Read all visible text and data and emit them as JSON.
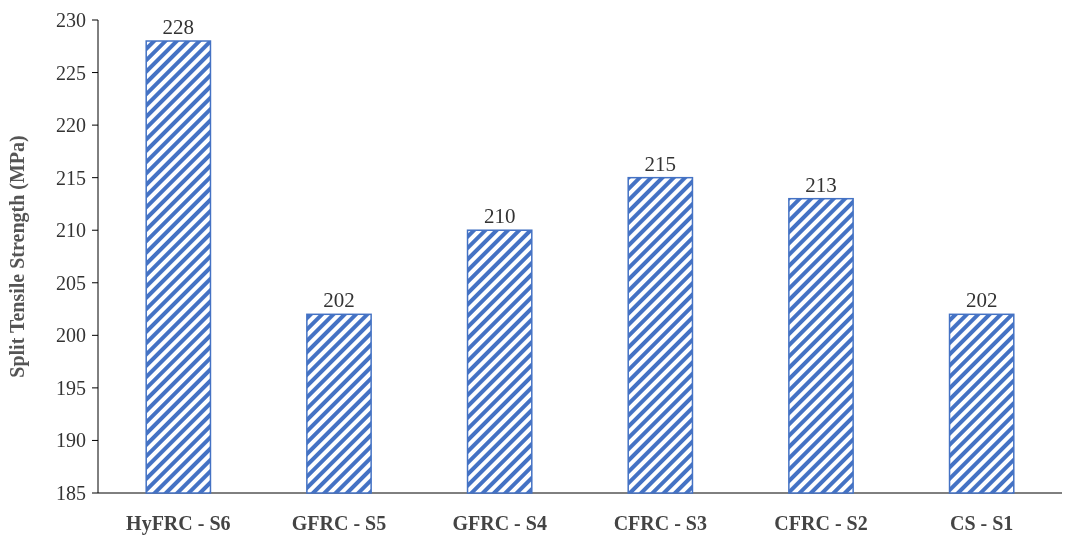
{
  "chart_data": {
    "type": "bar",
    "ylabel": "Split Tensile Strength (MPa)",
    "categories": [
      "HyFRC - S6",
      "GFRC - S5",
      "GFRC - S4",
      "CFRC - S3",
      "CFRC - S2",
      "CS - S1"
    ],
    "values": [
      228,
      202,
      210,
      215,
      213,
      202
    ],
    "color": "#4472c4",
    "ylim": [
      185,
      230
    ],
    "yticks": [
      185,
      190,
      195,
      200,
      205,
      210,
      215,
      220,
      225,
      230
    ],
    "data_labels": true
  }
}
